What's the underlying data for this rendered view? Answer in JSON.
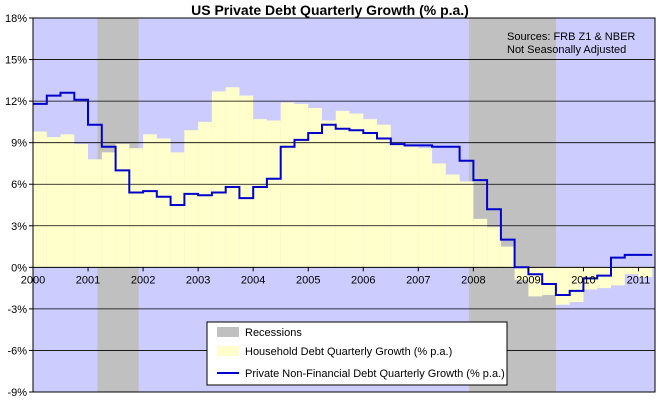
{
  "chart_data": {
    "type": "area",
    "title": "US Private Debt Quarterly Growth (% p.a.)",
    "annotations": [
      "Sources: FRB Z1 & NBER",
      "Not Seasonally Adjusted"
    ],
    "xlabel": "",
    "ylabel": "",
    "xlim": [
      2000,
      2011.3
    ],
    "ylim": [
      -9,
      18
    ],
    "y_ticks": [
      "-9%",
      "-6%",
      "-3%",
      "0%",
      "3%",
      "6%",
      "9%",
      "12%",
      "15%",
      "18%"
    ],
    "x_ticks": [
      "2000",
      "2001",
      "2002",
      "2003",
      "2004",
      "2005",
      "2006",
      "2007",
      "2008",
      "2009",
      "2010",
      "2011"
    ],
    "grid": "horizontal",
    "legend_position": "bottom-center",
    "recessions": [
      {
        "start": 2001.17,
        "end": 2001.92
      },
      {
        "start": 2007.92,
        "end": 2009.5
      }
    ],
    "series": [
      {
        "name": "Recessions",
        "type": "band",
        "color": "#c0c0c0"
      },
      {
        "name": "Household  Debt Quarterly Growth (% p.a.)",
        "type": "area",
        "color": "#ffffcc",
        "x": [
          2000.0,
          2000.25,
          2000.5,
          2000.75,
          2001.0,
          2001.25,
          2001.5,
          2001.75,
          2002.0,
          2002.25,
          2002.5,
          2002.75,
          2003.0,
          2003.25,
          2003.5,
          2003.75,
          2004.0,
          2004.25,
          2004.5,
          2004.75,
          2005.0,
          2005.25,
          2005.5,
          2005.75,
          2006.0,
          2006.25,
          2006.5,
          2006.75,
          2007.0,
          2007.25,
          2007.5,
          2007.75,
          2008.0,
          2008.25,
          2008.5,
          2008.75,
          2009.0,
          2009.25,
          2009.5,
          2009.75,
          2010.0,
          2010.25,
          2010.5,
          2010.75,
          2011.0
        ],
        "values": [
          9.8,
          9.4,
          9.6,
          8.9,
          7.8,
          8.3,
          8.9,
          8.6,
          9.6,
          9.3,
          8.3,
          9.9,
          10.5,
          12.7,
          13.0,
          12.4,
          10.7,
          10.6,
          11.9,
          11.8,
          11.5,
          10.6,
          11.3,
          11.1,
          10.7,
          10.3,
          8.9,
          8.7,
          8.6,
          7.5,
          6.7,
          6.2,
          3.5,
          2.9,
          1.5,
          -0.9,
          -2.1,
          -2.0,
          -2.7,
          -2.5,
          -1.6,
          -1.5,
          -1.3,
          -0.5,
          -0.7
        ]
      },
      {
        "name": "Private Non-Financial  Debt Quarterly Growth (% p.a.)",
        "type": "step-line",
        "color": "#0000cc",
        "x": [
          2000.0,
          2000.25,
          2000.5,
          2000.75,
          2001.0,
          2001.25,
          2001.5,
          2001.75,
          2002.0,
          2002.25,
          2002.5,
          2002.75,
          2003.0,
          2003.25,
          2003.5,
          2003.75,
          2004.0,
          2004.25,
          2004.5,
          2004.75,
          2005.0,
          2005.25,
          2005.5,
          2005.75,
          2006.0,
          2006.25,
          2006.5,
          2006.75,
          2007.0,
          2007.25,
          2007.5,
          2007.75,
          2008.0,
          2008.25,
          2008.5,
          2008.75,
          2009.0,
          2009.25,
          2009.5,
          2009.75,
          2010.0,
          2010.25,
          2010.5,
          2010.75,
          2011.0
        ],
        "values": [
          11.8,
          12.4,
          12.6,
          12.1,
          10.3,
          8.7,
          7.0,
          5.4,
          5.5,
          5.1,
          4.5,
          5.3,
          5.2,
          5.4,
          5.8,
          5.0,
          5.8,
          6.4,
          8.7,
          9.2,
          9.7,
          10.3,
          10.0,
          9.9,
          9.7,
          9.3,
          8.9,
          8.8,
          8.8,
          8.7,
          8.7,
          7.7,
          6.3,
          4.2,
          2.0,
          0.0,
          -0.5,
          -1.2,
          -2.0,
          -1.7,
          -0.8,
          -0.6,
          0.7,
          0.9,
          0.9
        ]
      }
    ]
  }
}
